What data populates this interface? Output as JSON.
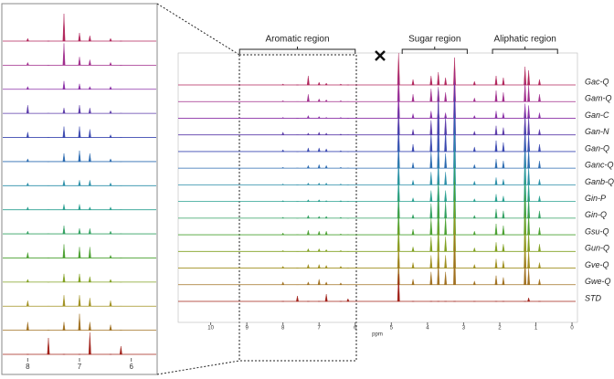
{
  "chart_data": {
    "type": "spectra",
    "x_label": "ppm",
    "xlim": [
      10.9,
      -0.1
    ],
    "xticks": [
      10,
      9,
      8,
      7,
      6,
      5,
      4,
      3,
      2,
      1,
      0
    ],
    "inset_xlim": [
      8.5,
      5.5
    ],
    "inset_xticks": [
      8,
      7,
      6
    ],
    "regions": [
      {
        "label": "Aromatic region",
        "range": [
          9.2,
          6.0
        ]
      },
      {
        "label": "Sugar region",
        "range": [
          4.7,
          2.9
        ]
      },
      {
        "label": "Aliphatic region",
        "range": [
          2.2,
          0.4
        ]
      }
    ],
    "x": [
      8.0,
      7.6,
      7.3,
      7.0,
      6.8,
      6.4,
      6.2,
      4.8,
      4.4,
      3.9,
      3.7,
      3.5,
      3.25,
      2.7,
      2.1,
      1.9,
      1.3,
      1.2,
      0.9
    ],
    "series": [
      {
        "name": "Gac-Q",
        "color": "#b0245a",
        "values": [
          1,
          0,
          10,
          3,
          2,
          1,
          0,
          35,
          6,
          10,
          14,
          8,
          30,
          4,
          10,
          8,
          20,
          16,
          6
        ]
      },
      {
        "name": "Gam-Q",
        "color": "#a02c8c",
        "values": [
          1,
          0,
          8,
          3,
          2,
          1,
          0,
          32,
          8,
          14,
          16,
          10,
          34,
          4,
          12,
          10,
          22,
          18,
          8
        ]
      },
      {
        "name": "Gan-C",
        "color": "#8a2fa6",
        "values": [
          1,
          0,
          3,
          2,
          1,
          1,
          0,
          30,
          5,
          8,
          10,
          6,
          40,
          3,
          8,
          6,
          16,
          14,
          6
        ]
      },
      {
        "name": "Gan-N",
        "color": "#5a3aa8",
        "values": [
          3,
          0,
          2,
          3,
          2,
          1,
          0,
          30,
          6,
          16,
          50,
          20,
          55,
          4,
          10,
          8,
          24,
          20,
          6
        ]
      },
      {
        "name": "Gan-Q",
        "color": "#3a48b0",
        "values": [
          2,
          0,
          4,
          4,
          3,
          1,
          0,
          30,
          8,
          20,
          45,
          24,
          60,
          5,
          12,
          10,
          28,
          20,
          8
        ]
      },
      {
        "name": "Ganc-Q",
        "color": "#2a6ab0",
        "values": [
          1,
          0,
          3,
          4,
          3,
          1,
          0,
          28,
          6,
          18,
          30,
          16,
          58,
          4,
          10,
          8,
          30,
          22,
          8
        ]
      },
      {
        "name": "Ganb-Q",
        "color": "#2a8ea8",
        "values": [
          1,
          0,
          2,
          2,
          2,
          1,
          0,
          28,
          5,
          14,
          26,
          14,
          56,
          4,
          8,
          6,
          34,
          20,
          6
        ]
      },
      {
        "name": "Gin-P",
        "color": "#2aa090",
        "values": [
          1,
          0,
          2,
          2,
          1,
          1,
          0,
          28,
          4,
          12,
          22,
          12,
          55,
          3,
          8,
          6,
          40,
          22,
          6
        ]
      },
      {
        "name": "Gin-Q",
        "color": "#30a060",
        "values": [
          1,
          0,
          3,
          2,
          2,
          1,
          0,
          28,
          4,
          16,
          40,
          18,
          56,
          3,
          10,
          8,
          42,
          24,
          8
        ]
      },
      {
        "name": "Gsu-Q",
        "color": "#4aa030",
        "values": [
          2,
          0,
          5,
          4,
          4,
          1,
          0,
          30,
          6,
          18,
          36,
          20,
          58,
          4,
          12,
          10,
          44,
          24,
          8
        ]
      },
      {
        "name": "Gun-Q",
        "color": "#80a020",
        "values": [
          1,
          0,
          3,
          3,
          2,
          1,
          0,
          30,
          5,
          16,
          30,
          16,
          56,
          4,
          10,
          8,
          40,
          22,
          8
        ]
      },
      {
        "name": "Gve-Q",
        "color": "#a09020",
        "values": [
          2,
          0,
          4,
          4,
          3,
          2,
          0,
          28,
          6,
          14,
          26,
          14,
          55,
          4,
          10,
          8,
          36,
          20,
          6
        ]
      },
      {
        "name": "Gwe-Q",
        "color": "#a07020",
        "values": [
          3,
          0,
          3,
          6,
          3,
          2,
          0,
          28,
          6,
          14,
          24,
          14,
          54,
          4,
          10,
          8,
          30,
          18,
          6
        ]
      },
      {
        "name": "STD",
        "color": "#a02018",
        "values": [
          0,
          6,
          0,
          0,
          8,
          0,
          3,
          30,
          0,
          0,
          0,
          0,
          0,
          0,
          0,
          0,
          0,
          4,
          0
        ]
      }
    ]
  }
}
